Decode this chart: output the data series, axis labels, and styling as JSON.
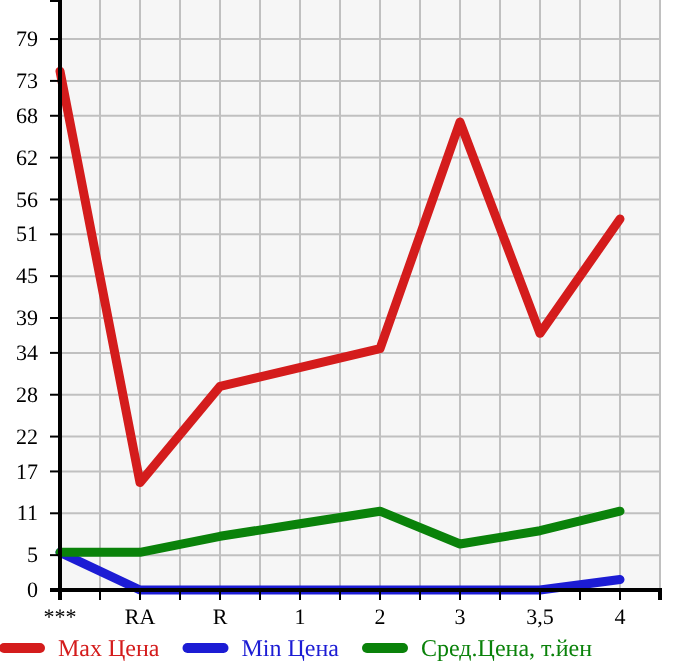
{
  "chart_data": {
    "type": "line",
    "categories": [
      "***",
      "RA",
      "R",
      "1",
      "2",
      "3",
      "3,5",
      "4"
    ],
    "series": [
      {
        "name": "Max Цена",
        "color": "#d41c1c",
        "values": [
          74.4,
          15.4,
          29.2,
          null,
          34.6,
          67.1,
          36.8,
          53.2
        ]
      },
      {
        "name": "Min Цена",
        "color": "#1c1cd4",
        "values": [
          5.4,
          0,
          0,
          0,
          0,
          0,
          0,
          1.5
        ]
      },
      {
        "name": "Сред.Цена, т.йен",
        "color": "#0a820a",
        "values": [
          5.4,
          5.4,
          7.7,
          9.5,
          11.3,
          6.6,
          8.5,
          11.3
        ]
      }
    ],
    "ylim": [
      0,
      84.6
    ],
    "yticks": [
      0,
      5,
      11,
      17,
      22,
      28,
      34,
      39,
      45,
      51,
      56,
      62,
      68,
      73,
      79
    ],
    "grid": true,
    "legend": "bottom",
    "line_style": "solid",
    "marker": "none"
  }
}
